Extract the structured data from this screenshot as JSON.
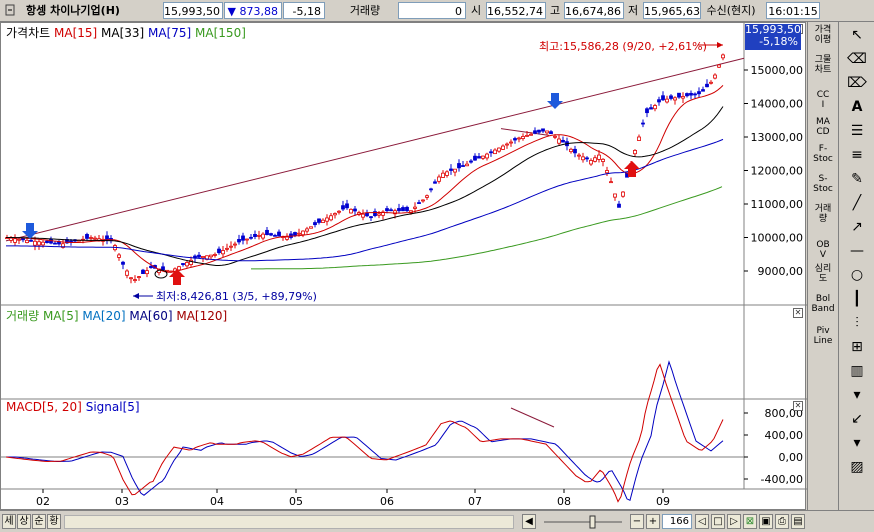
{
  "header": {
    "stock_name": "항셍 차이나기업(H)",
    "price": "15,993,50",
    "change": "▼ 873,88",
    "change_pct": "-5,18",
    "volume_label": "거래량",
    "volume": "0",
    "open_label": "시",
    "open": "16,552,74",
    "high_label": "고",
    "high": "16,674,86",
    "low_label": "저",
    "low": "15,965,63",
    "status": "수신(현지)",
    "time": "16:01:15"
  },
  "price_panel": {
    "title": "가격차트",
    "ma_labels": [
      {
        "text": "MA[15]",
        "color": "#d00000"
      },
      {
        "text": "MA[33]",
        "color": "#000000"
      },
      {
        "text": "MA[75]",
        "color": "#0000c0"
      },
      {
        "text": "MA[150]",
        "color": "#3a9a20"
      }
    ],
    "current_price_tag": "15,993,50",
    "current_pct_tag": "-5,18%",
    "high_annotation": "최고:15,586,28 (9/20, +2,61%)",
    "low_annotation": "최저:8,426,81 (3/5, +89,79%)",
    "y_ticks": [
      "15000,00",
      "14000,00",
      "13000,00",
      "12000,00",
      "11000,00",
      "10000,00",
      "9000,00"
    ]
  },
  "volume_panel": {
    "title": "거래량",
    "ma_labels": [
      {
        "text": "MA[5]",
        "color": "#3a9a20"
      },
      {
        "text": "MA[20]",
        "color": "#0070c0"
      },
      {
        "text": "MA[60]",
        "color": "#000080"
      },
      {
        "text": "MA[120]",
        "color": "#a00000"
      }
    ]
  },
  "macd_panel": {
    "title_macd": "MACD[5, 20]",
    "title_signal": "Signal[5]",
    "y_ticks": [
      "800,00",
      "400,00",
      "0,00",
      "-400,00"
    ]
  },
  "x_ticks": [
    "02",
    "03",
    "04",
    "05",
    "06",
    "07",
    "08",
    "09"
  ],
  "indicator_menu": [
    "가격이평",
    "그물차트",
    "CCI",
    "MACD",
    "F-Stoc",
    "S-Stoc",
    "거래량",
    "OBV",
    "심리도",
    "Bol Band",
    "Piv Line"
  ],
  "bottom": {
    "buttons": [
      "세",
      "상",
      "순",
      "황"
    ],
    "zoom_value": "166"
  },
  "colors": {
    "up": "#e00000",
    "down": "#0000d0",
    "signal_arrow_down": "#1e5adc",
    "signal_arrow_up": "#e01010",
    "price_tag_bg": "#2040c0"
  }
}
